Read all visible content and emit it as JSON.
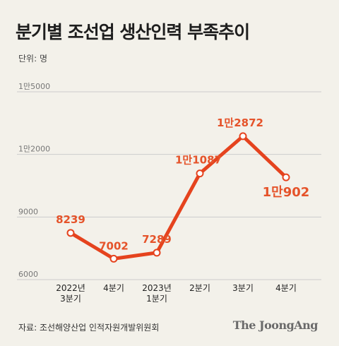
{
  "header": {
    "title": "분기별 조선업 생산인력 부족추이",
    "unit": "단위: 명"
  },
  "footer": {
    "source": "자료: 조선해양산업 인적자원개발위원회",
    "brand": "The JoongAng"
  },
  "colors": {
    "background": "#f3f1ea",
    "line": "#e5431e",
    "label": "#e5532a",
    "grid": "#cccccc"
  },
  "chart_data": {
    "type": "line",
    "title": "분기별 조선업 생산인력 부족추이",
    "ylabel": "단위: 명",
    "ylim": [
      6000,
      15000
    ],
    "yticks": [
      {
        "value": 6000,
        "label": "6000"
      },
      {
        "value": 9000,
        "label": "9000"
      },
      {
        "value": 12000,
        "label": "1만2000"
      },
      {
        "value": 15000,
        "label": "1만5000"
      }
    ],
    "grid": true,
    "categories": [
      [
        "2022년",
        "3분기"
      ],
      [
        "4분기"
      ],
      [
        "2023년",
        "1분기"
      ],
      [
        "2분기"
      ],
      [
        "3분기"
      ],
      [
        "4분기"
      ]
    ],
    "values": [
      8239,
      7002,
      7289,
      11087,
      12872,
      10902
    ],
    "data_labels": [
      "8239",
      "7002",
      "7289",
      "1만1087",
      "1만2872",
      "1만902"
    ]
  }
}
